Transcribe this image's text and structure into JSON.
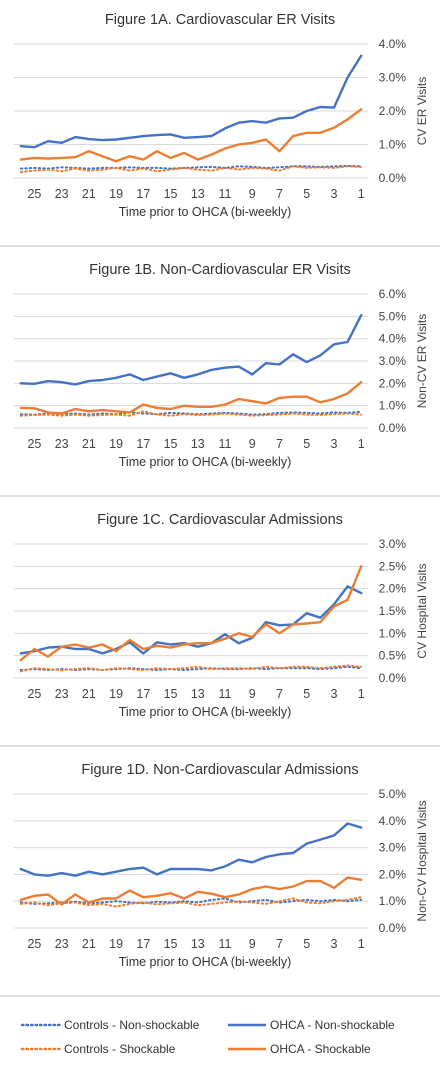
{
  "legend": {
    "controls_nonshockable": "Controls - Non-shockable",
    "ohca_nonshockable": "OHCA - Non-shockable",
    "controls_shockable": "Controls - Shockable",
    "ohca_shockable": "OHCA - Shockable"
  },
  "colors": {
    "blue": "#4472C4",
    "orange": "#ED7D31",
    "grid": "#d9d9d9",
    "divider": "#bfbfbf"
  },
  "chart_data": [
    {
      "type": "line",
      "title": "Figure 1A. Cardiovascular ER Visits",
      "xlabel": "Time prior to OHCA (bi-weekly)",
      "ylabel": "CV ER Visits",
      "ylim": [
        0,
        4
      ],
      "yticks": [
        "0.0%",
        "1.0%",
        "2.0%",
        "3.0%",
        "4.0%"
      ],
      "x": [
        26,
        25,
        24,
        23,
        22,
        21,
        20,
        19,
        18,
        17,
        16,
        15,
        14,
        13,
        12,
        11,
        10,
        9,
        8,
        7,
        6,
        5,
        4,
        3,
        2,
        1
      ],
      "xticks": [
        "25",
        "23",
        "21",
        "19",
        "17",
        "15",
        "13",
        "11",
        "9",
        "7",
        "5",
        "3",
        "1"
      ],
      "grid": true,
      "series": [
        {
          "name": "OHCA - Non-shockable",
          "style": "solid",
          "color": "#4472C4",
          "values": [
            0.95,
            0.92,
            1.1,
            1.05,
            1.22,
            1.16,
            1.13,
            1.15,
            1.2,
            1.25,
            1.28,
            1.3,
            1.2,
            1.22,
            1.25,
            1.48,
            1.65,
            1.7,
            1.65,
            1.78,
            1.8,
            2.0,
            2.12,
            2.1,
            3.0,
            3.65
          ]
        },
        {
          "name": "OHCA - Shockable",
          "style": "solid",
          "color": "#ED7D31",
          "values": [
            0.55,
            0.6,
            0.58,
            0.6,
            0.62,
            0.8,
            0.65,
            0.5,
            0.65,
            0.55,
            0.8,
            0.6,
            0.75,
            0.55,
            0.7,
            0.88,
            1.0,
            1.05,
            1.15,
            0.8,
            1.25,
            1.35,
            1.35,
            1.5,
            1.75,
            2.05
          ]
        },
        {
          "name": "Controls - Non-shockable",
          "style": "dotted",
          "color": "#4472C4",
          "values": [
            0.28,
            0.3,
            0.28,
            0.32,
            0.3,
            0.28,
            0.3,
            0.3,
            0.32,
            0.3,
            0.3,
            0.28,
            0.3,
            0.32,
            0.33,
            0.3,
            0.35,
            0.33,
            0.3,
            0.32,
            0.35,
            0.35,
            0.33,
            0.35,
            0.36,
            0.35
          ]
        },
        {
          "name": "Controls - Shockable",
          "style": "dotted",
          "color": "#ED7D31",
          "values": [
            0.18,
            0.22,
            0.25,
            0.2,
            0.28,
            0.22,
            0.25,
            0.3,
            0.22,
            0.28,
            0.2,
            0.25,
            0.3,
            0.25,
            0.22,
            0.3,
            0.25,
            0.3,
            0.28,
            0.22,
            0.35,
            0.3,
            0.32,
            0.3,
            0.35,
            0.33
          ]
        }
      ]
    },
    {
      "type": "line",
      "title": "Figure 1B. Non-Cardiovascular ER Visits",
      "xlabel": "Time prior to OHCA (bi-weekly)",
      "ylabel": "Non-CV ER Visits",
      "ylim": [
        0,
        6
      ],
      "yticks": [
        "0.0%",
        "1.0%",
        "2.0%",
        "3.0%",
        "4.0%",
        "5.0%",
        "6.0%"
      ],
      "x": [
        26,
        25,
        24,
        23,
        22,
        21,
        20,
        19,
        18,
        17,
        16,
        15,
        14,
        13,
        12,
        11,
        10,
        9,
        8,
        7,
        6,
        5,
        4,
        3,
        2,
        1
      ],
      "xticks": [
        "25",
        "23",
        "21",
        "19",
        "17",
        "15",
        "13",
        "11",
        "9",
        "7",
        "5",
        "3",
        "1"
      ],
      "grid": true,
      "series": [
        {
          "name": "OHCA - Non-shockable",
          "style": "solid",
          "color": "#4472C4",
          "values": [
            2.0,
            1.98,
            2.1,
            2.05,
            1.95,
            2.1,
            2.15,
            2.25,
            2.4,
            2.15,
            2.3,
            2.45,
            2.25,
            2.4,
            2.6,
            2.7,
            2.75,
            2.4,
            2.9,
            2.85,
            3.3,
            2.95,
            3.25,
            3.75,
            3.85,
            5.05
          ]
        },
        {
          "name": "OHCA - Shockable",
          "style": "solid",
          "color": "#ED7D31",
          "values": [
            0.9,
            0.88,
            0.7,
            0.65,
            0.85,
            0.75,
            0.8,
            0.75,
            0.7,
            1.05,
            0.9,
            0.85,
            1.0,
            0.95,
            0.95,
            1.05,
            1.3,
            1.2,
            1.1,
            1.35,
            1.4,
            1.4,
            1.15,
            1.3,
            1.55,
            2.05
          ]
        },
        {
          "name": "Controls - Non-shockable",
          "style": "dotted",
          "color": "#4472C4",
          "values": [
            0.62,
            0.6,
            0.65,
            0.62,
            0.65,
            0.6,
            0.65,
            0.62,
            0.7,
            0.65,
            0.62,
            0.68,
            0.65,
            0.62,
            0.65,
            0.68,
            0.65,
            0.6,
            0.62,
            0.68,
            0.7,
            0.68,
            0.65,
            0.7,
            0.68,
            0.72
          ]
        },
        {
          "name": "Controls - Shockable",
          "style": "dotted",
          "color": "#ED7D31",
          "values": [
            0.55,
            0.58,
            0.6,
            0.55,
            0.6,
            0.55,
            0.58,
            0.6,
            0.55,
            0.75,
            0.6,
            0.55,
            0.62,
            0.58,
            0.6,
            0.65,
            0.6,
            0.55,
            0.58,
            0.6,
            0.65,
            0.6,
            0.58,
            0.62,
            0.65,
            0.6
          ]
        }
      ]
    },
    {
      "type": "line",
      "title": "Figure 1C. Cardiovascular Admissions",
      "xlabel": "Time prior to OHCA (bi-weekly)",
      "ylabel": "CV Hospital Visits",
      "ylim": [
        0,
        3
      ],
      "yticks": [
        "0.0%",
        "0.5%",
        "1.0%",
        "1.5%",
        "2.0%",
        "2.5%",
        "3.0%"
      ],
      "x": [
        26,
        25,
        24,
        23,
        22,
        21,
        20,
        19,
        18,
        17,
        16,
        15,
        14,
        13,
        12,
        11,
        10,
        9,
        8,
        7,
        6,
        5,
        4,
        3,
        2,
        1
      ],
      "xticks": [
        "25",
        "23",
        "21",
        "19",
        "17",
        "15",
        "13",
        "11",
        "9",
        "7",
        "5",
        "3",
        "1"
      ],
      "grid": true,
      "series": [
        {
          "name": "OHCA - Non-shockable",
          "style": "solid",
          "color": "#4472C4",
          "values": [
            0.55,
            0.6,
            0.68,
            0.7,
            0.65,
            0.65,
            0.55,
            0.65,
            0.8,
            0.55,
            0.8,
            0.75,
            0.78,
            0.7,
            0.78,
            0.98,
            0.78,
            0.9,
            1.25,
            1.18,
            1.2,
            1.45,
            1.35,
            1.65,
            2.05,
            1.9
          ]
        },
        {
          "name": "OHCA - Shockable",
          "style": "solid",
          "color": "#ED7D31",
          "values": [
            0.4,
            0.65,
            0.48,
            0.7,
            0.75,
            0.68,
            0.75,
            0.6,
            0.85,
            0.65,
            0.72,
            0.68,
            0.75,
            0.78,
            0.78,
            0.88,
            1.0,
            0.92,
            1.2,
            1.0,
            1.2,
            1.22,
            1.25,
            1.6,
            1.75,
            2.5
          ]
        },
        {
          "name": "Controls - Non-shockable",
          "style": "dotted",
          "color": "#4472C4",
          "values": [
            0.18,
            0.2,
            0.18,
            0.2,
            0.18,
            0.2,
            0.18,
            0.2,
            0.22,
            0.2,
            0.18,
            0.2,
            0.18,
            0.2,
            0.22,
            0.2,
            0.2,
            0.22,
            0.2,
            0.22,
            0.22,
            0.22,
            0.2,
            0.22,
            0.25,
            0.22
          ]
        },
        {
          "name": "Controls - Shockable",
          "style": "dotted",
          "color": "#ED7D31",
          "values": [
            0.15,
            0.22,
            0.2,
            0.18,
            0.2,
            0.22,
            0.18,
            0.22,
            0.2,
            0.18,
            0.22,
            0.2,
            0.22,
            0.25,
            0.2,
            0.22,
            0.22,
            0.2,
            0.25,
            0.22,
            0.25,
            0.25,
            0.22,
            0.25,
            0.28,
            0.25
          ]
        }
      ]
    },
    {
      "type": "line",
      "title": "Figure 1D. Non-Cardiovascular Admissions",
      "xlabel": "Time prior to OHCA (bi-weekly)",
      "ylabel": "Non-CV Hospital Visits",
      "ylim": [
        0,
        5
      ],
      "yticks": [
        "0.0%",
        "1.0%",
        "2.0%",
        "3.0%",
        "4.0%",
        "5.0%"
      ],
      "x": [
        26,
        25,
        24,
        23,
        22,
        21,
        20,
        19,
        18,
        17,
        16,
        15,
        14,
        13,
        12,
        11,
        10,
        9,
        8,
        7,
        6,
        5,
        4,
        3,
        2,
        1
      ],
      "xticks": [
        "25",
        "23",
        "21",
        "19",
        "17",
        "15",
        "13",
        "11",
        "9",
        "7",
        "5",
        "3",
        "1"
      ],
      "grid": true,
      "series": [
        {
          "name": "OHCA - Non-shockable",
          "style": "solid",
          "color": "#4472C4",
          "values": [
            2.2,
            2.0,
            1.95,
            2.05,
            1.95,
            2.1,
            2.0,
            2.1,
            2.2,
            2.25,
            2.0,
            2.2,
            2.2,
            2.2,
            2.15,
            2.3,
            2.55,
            2.45,
            2.65,
            2.75,
            2.8,
            3.15,
            3.3,
            3.45,
            3.9,
            3.75
          ]
        },
        {
          "name": "OHCA - Shockable",
          "style": "solid",
          "color": "#ED7D31",
          "values": [
            1.05,
            1.2,
            1.25,
            0.88,
            1.25,
            0.95,
            1.1,
            1.1,
            1.4,
            1.15,
            1.2,
            1.3,
            1.1,
            1.35,
            1.28,
            1.15,
            1.25,
            1.45,
            1.55,
            1.45,
            1.55,
            1.75,
            1.75,
            1.5,
            1.88,
            1.8
          ]
        },
        {
          "name": "Controls - Non-shockable",
          "style": "dotted",
          "color": "#4472C4",
          "values": [
            0.95,
            0.9,
            0.92,
            0.95,
            0.98,
            0.92,
            0.95,
            1.0,
            0.95,
            0.92,
            0.98,
            0.95,
            1.0,
            0.95,
            1.05,
            1.1,
            0.95,
            1.0,
            1.05,
            0.95,
            1.0,
            1.05,
            1.0,
            1.05,
            1.0,
            1.05
          ]
        },
        {
          "name": "Controls - Shockable",
          "style": "dotted",
          "color": "#ED7D31",
          "values": [
            0.9,
            0.95,
            0.85,
            0.92,
            0.95,
            0.85,
            0.9,
            0.8,
            0.9,
            0.95,
            0.88,
            0.92,
            0.95,
            0.85,
            0.9,
            0.95,
            1.0,
            0.95,
            0.9,
            1.0,
            1.1,
            0.95,
            0.92,
            1.0,
            1.05,
            1.15
          ]
        }
      ]
    }
  ]
}
